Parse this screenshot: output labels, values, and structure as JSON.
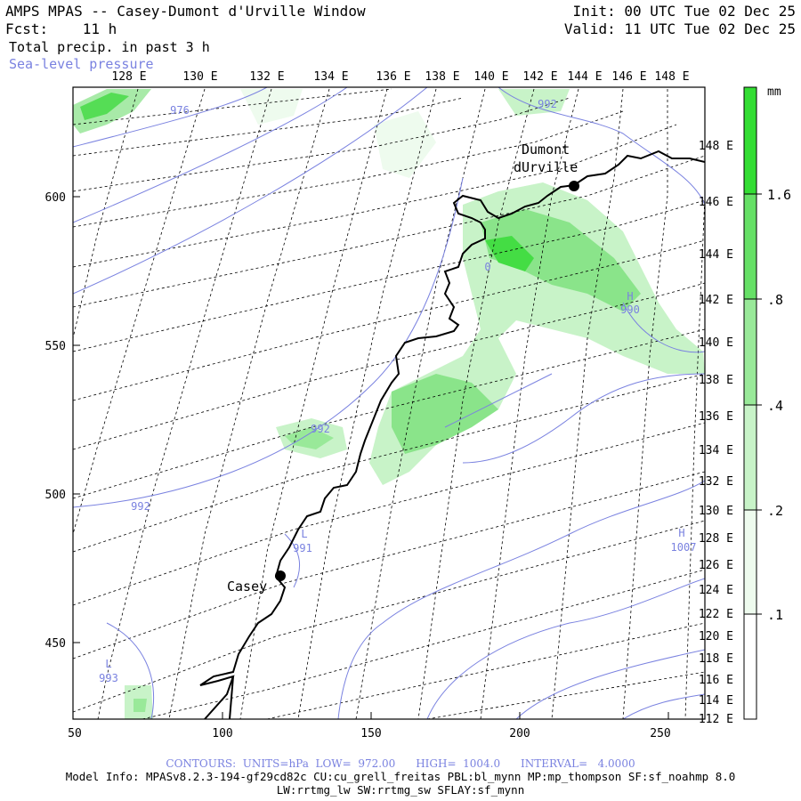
{
  "header": {
    "title": "AMPS MPAS -- Casey-Dumont d'Urville Window",
    "fcst": "Fcst:    11 h",
    "field": "Total precip. in past 3 h",
    "overlay": "Sea-level pressure",
    "init": "Init: 00 UTC Tue 02 Dec 25",
    "valid": "Valid: 11 UTC Tue 02 Dec 25"
  },
  "top_lon_labels": [
    "128 E",
    "130 E",
    "132 E",
    "134 E",
    "136 E",
    "138 E",
    "140 E",
    "142 E",
    "144 E",
    "146 E",
    "148 E"
  ],
  "right_lon_labels": [
    "148 E",
    "146 E",
    "144 E",
    "142 E",
    "140 E",
    "138 E",
    "136 E",
    "134 E",
    "132 E",
    "130 E",
    "128 E",
    "126 E",
    "124 E",
    "122 E",
    "120 E",
    "118 E",
    "116 E",
    "114 E",
    "112 E"
  ],
  "x_ticks": [
    "50",
    "100",
    "150",
    "200",
    "250"
  ],
  "y_ticks": [
    "600",
    "550",
    "500",
    "450"
  ],
  "stations": {
    "casey": "Casey",
    "dumont_line1": "Dumont",
    "dumont_line2": "dUrville"
  },
  "contour_labels": {
    "c976": "976",
    "c992_top": "992",
    "c992_mid": "992",
    "c992_left": "992",
    "c990": "990",
    "c991": "991",
    "c993": "993",
    "c1007": "1007",
    "c0": "0",
    "low_a": "L",
    "low_b": "L",
    "high_a": "H",
    "high_b": "H"
  },
  "colorbar": {
    "unit": "mm",
    "labels": [
      "1.6",
      ".8",
      ".4",
      ".2",
      ".1"
    ],
    "colors": [
      "#33dd33",
      "#66e066",
      "#99e999",
      "#c8f3c8",
      "#eefbee"
    ]
  },
  "footer": {
    "contours": "CONTOURS:  UNITS=hPa  LOW=  972.00      HIGH=  1004.0      INTERVAL=   4.0000",
    "model_info": "Model Info: MPASv8.2.3-194-gf29cd82c CU:cu_grell_freitas PBL:bl_mynn MP:mp_thompson SF:sf_noahmp 8.0",
    "model_info2": "LW:rrtmg_lw SW:rrtmg_sw SFLAY:sf_mynn"
  },
  "colors": {
    "contour": "#7a82e0",
    "grid": "#000000",
    "precip_light": "#c8f3c8",
    "precip_heavy": "#44dd44"
  }
}
